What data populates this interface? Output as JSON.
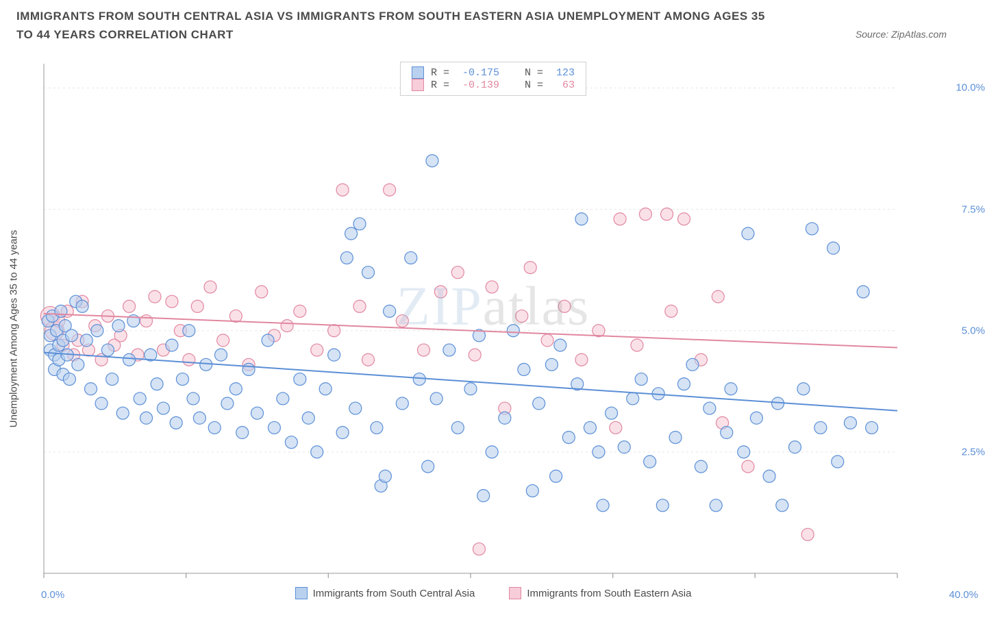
{
  "title": "IMMIGRANTS FROM SOUTH CENTRAL ASIA VS IMMIGRANTS FROM SOUTH EASTERN ASIA UNEMPLOYMENT AMONG AGES 35 TO 44 YEARS CORRELATION CHART",
  "source_label": "Source:",
  "source_value": "ZipAtlas.com",
  "ylabel": "Unemployment Among Ages 35 to 44 years",
  "watermark_a": "ZIP",
  "watermark_b": "atlas",
  "chart": {
    "type": "scatter",
    "xlim": [
      0,
      40
    ],
    "ylim": [
      0,
      10.5
    ],
    "xtick_positions": [
      0,
      6.67,
      13.33,
      20,
      26.67,
      33.33,
      40
    ],
    "xtick_labels_visible": {
      "left": "0.0%",
      "right": "40.0%"
    },
    "ytick_positions": [
      2.5,
      5.0,
      7.5,
      10.0
    ],
    "ytick_labels": [
      "2.5%",
      "5.0%",
      "7.5%",
      "10.0%"
    ],
    "grid_color": "#e5e5e5",
    "grid_dash": "3,4",
    "background_color": "#ffffff",
    "axis_color": "#999999",
    "tick_color": "#888888",
    "yaxis_label_color": "#5b8fd6",
    "xaxis_label_color": "#5b8fd6",
    "marker_radius": 9,
    "marker_radius_large": 14,
    "marker_stroke_width": 1.2,
    "marker_fill_opacity": 0.35,
    "line_width": 2
  },
  "series": [
    {
      "name": "Immigrants from South Central Asia",
      "color": "#5b8fd6",
      "fill": "#b9d1ef",
      "stroke": "#5b8fd6",
      "R": "-0.175",
      "N": "123",
      "trend": {
        "x1": 0,
        "y1": 4.55,
        "x2": 40,
        "y2": 3.35
      },
      "points": [
        [
          0.2,
          5.2
        ],
        [
          0.3,
          4.9
        ],
        [
          0.3,
          4.6
        ],
        [
          0.4,
          5.3
        ],
        [
          0.5,
          4.5
        ],
        [
          0.5,
          4.2
        ],
        [
          0.6,
          5.0
        ],
        [
          0.7,
          4.7
        ],
        [
          0.7,
          4.4
        ],
        [
          0.8,
          5.4
        ],
        [
          0.9,
          4.8
        ],
        [
          0.9,
          4.1
        ],
        [
          1.0,
          5.1
        ],
        [
          1.1,
          4.5
        ],
        [
          1.2,
          4.0
        ],
        [
          1.3,
          4.9
        ],
        [
          1.5,
          5.6
        ],
        [
          1.6,
          4.3
        ],
        [
          1.8,
          5.5
        ],
        [
          2.0,
          4.8
        ],
        [
          2.2,
          3.8
        ],
        [
          2.5,
          5.0
        ],
        [
          2.7,
          3.5
        ],
        [
          3.0,
          4.6
        ],
        [
          3.2,
          4.0
        ],
        [
          3.5,
          5.1
        ],
        [
          3.7,
          3.3
        ],
        [
          4.0,
          4.4
        ],
        [
          4.2,
          5.2
        ],
        [
          4.5,
          3.6
        ],
        [
          4.8,
          3.2
        ],
        [
          5.0,
          4.5
        ],
        [
          5.3,
          3.9
        ],
        [
          5.6,
          3.4
        ],
        [
          6.0,
          4.7
        ],
        [
          6.2,
          3.1
        ],
        [
          6.5,
          4.0
        ],
        [
          6.8,
          5.0
        ],
        [
          7.0,
          3.6
        ],
        [
          7.3,
          3.2
        ],
        [
          7.6,
          4.3
        ],
        [
          8.0,
          3.0
        ],
        [
          8.3,
          4.5
        ],
        [
          8.6,
          3.5
        ],
        [
          9.0,
          3.8
        ],
        [
          9.3,
          2.9
        ],
        [
          9.6,
          4.2
        ],
        [
          10.0,
          3.3
        ],
        [
          10.5,
          4.8
        ],
        [
          10.8,
          3.0
        ],
        [
          11.2,
          3.6
        ],
        [
          11.6,
          2.7
        ],
        [
          12.0,
          4.0
        ],
        [
          12.4,
          3.2
        ],
        [
          12.8,
          2.5
        ],
        [
          13.2,
          3.8
        ],
        [
          13.6,
          4.5
        ],
        [
          14.0,
          2.9
        ],
        [
          14.2,
          6.5
        ],
        [
          14.4,
          7.0
        ],
        [
          14.6,
          3.4
        ],
        [
          14.8,
          7.2
        ],
        [
          15.2,
          6.2
        ],
        [
          15.6,
          3.0
        ],
        [
          15.8,
          1.8
        ],
        [
          16.0,
          2.0
        ],
        [
          16.2,
          5.4
        ],
        [
          16.8,
          3.5
        ],
        [
          17.2,
          6.5
        ],
        [
          17.6,
          4.0
        ],
        [
          18.0,
          2.2
        ],
        [
          18.2,
          8.5
        ],
        [
          18.4,
          3.6
        ],
        [
          19.0,
          4.6
        ],
        [
          19.4,
          3.0
        ],
        [
          20.0,
          3.8
        ],
        [
          20.4,
          4.9
        ],
        [
          20.6,
          1.6
        ],
        [
          21.0,
          2.5
        ],
        [
          21.6,
          3.2
        ],
        [
          22.0,
          5.0
        ],
        [
          22.5,
          4.2
        ],
        [
          22.9,
          1.7
        ],
        [
          23.2,
          3.5
        ],
        [
          23.8,
          4.3
        ],
        [
          24.0,
          2.0
        ],
        [
          24.2,
          4.7
        ],
        [
          24.6,
          2.8
        ],
        [
          25.0,
          3.9
        ],
        [
          25.2,
          7.3
        ],
        [
          25.6,
          3.0
        ],
        [
          26.0,
          2.5
        ],
        [
          26.2,
          1.4
        ],
        [
          26.6,
          3.3
        ],
        [
          27.2,
          2.6
        ],
        [
          27.6,
          3.6
        ],
        [
          28.0,
          4.0
        ],
        [
          28.4,
          2.3
        ],
        [
          28.8,
          3.7
        ],
        [
          29.0,
          1.4
        ],
        [
          29.6,
          2.8
        ],
        [
          30.0,
          3.9
        ],
        [
          30.4,
          4.3
        ],
        [
          30.8,
          2.2
        ],
        [
          31.2,
          3.4
        ],
        [
          31.5,
          1.4
        ],
        [
          32.0,
          2.9
        ],
        [
          32.2,
          3.8
        ],
        [
          32.8,
          2.5
        ],
        [
          33.0,
          7.0
        ],
        [
          33.4,
          3.2
        ],
        [
          34.0,
          2.0
        ],
        [
          34.4,
          3.5
        ],
        [
          34.6,
          1.4
        ],
        [
          35.2,
          2.6
        ],
        [
          35.6,
          3.8
        ],
        [
          36.0,
          7.1
        ],
        [
          36.4,
          3.0
        ],
        [
          37.0,
          6.7
        ],
        [
          37.2,
          2.3
        ],
        [
          37.8,
          3.1
        ],
        [
          38.4,
          5.8
        ],
        [
          38.8,
          3.0
        ]
      ]
    },
    {
      "name": "Immigrants from South Eastern Asia",
      "color": "#e89ab0",
      "fill": "#f6cdd8",
      "stroke": "#e187a0",
      "R": "-0.139",
      "N": " 63",
      "trend": {
        "x1": 0,
        "y1": 5.35,
        "x2": 40,
        "y2": 4.65
      },
      "points": [
        [
          0.3,
          5.3
        ],
        [
          0.5,
          5.0
        ],
        [
          0.7,
          5.2
        ],
        [
          0.9,
          4.7
        ],
        [
          1.1,
          5.4
        ],
        [
          1.4,
          4.5
        ],
        [
          1.6,
          4.8
        ],
        [
          1.8,
          5.6
        ],
        [
          2.1,
          4.6
        ],
        [
          2.4,
          5.1
        ],
        [
          2.7,
          4.4
        ],
        [
          3.0,
          5.3
        ],
        [
          3.3,
          4.7
        ],
        [
          3.6,
          4.9
        ],
        [
          4.0,
          5.5
        ],
        [
          4.4,
          4.5
        ],
        [
          4.8,
          5.2
        ],
        [
          5.2,
          5.7
        ],
        [
          5.6,
          4.6
        ],
        [
          6.0,
          5.6
        ],
        [
          6.4,
          5.0
        ],
        [
          6.8,
          4.4
        ],
        [
          7.2,
          5.5
        ],
        [
          7.8,
          5.9
        ],
        [
          8.4,
          4.8
        ],
        [
          9.0,
          5.3
        ],
        [
          9.6,
          4.3
        ],
        [
          10.2,
          5.8
        ],
        [
          10.8,
          4.9
        ],
        [
          11.4,
          5.1
        ],
        [
          12.0,
          5.4
        ],
        [
          12.8,
          4.6
        ],
        [
          13.6,
          5.0
        ],
        [
          14.0,
          7.9
        ],
        [
          14.8,
          5.5
        ],
        [
          15.2,
          4.4
        ],
        [
          16.2,
          7.9
        ],
        [
          16.8,
          5.2
        ],
        [
          17.8,
          4.6
        ],
        [
          18.6,
          5.8
        ],
        [
          19.4,
          6.2
        ],
        [
          20.2,
          4.5
        ],
        [
          21.0,
          5.9
        ],
        [
          21.6,
          3.4
        ],
        [
          22.4,
          5.3
        ],
        [
          22.8,
          6.3
        ],
        [
          23.6,
          4.8
        ],
        [
          24.4,
          5.5
        ],
        [
          25.2,
          4.4
        ],
        [
          26.0,
          5.0
        ],
        [
          26.8,
          3.0
        ],
        [
          27.0,
          7.3
        ],
        [
          27.8,
          4.7
        ],
        [
          28.2,
          7.4
        ],
        [
          29.2,
          7.4
        ],
        [
          29.4,
          5.4
        ],
        [
          30.0,
          7.3
        ],
        [
          30.8,
          4.4
        ],
        [
          31.6,
          5.7
        ],
        [
          31.8,
          3.1
        ],
        [
          33.0,
          2.2
        ],
        [
          35.8,
          0.8
        ],
        [
          20.4,
          0.5
        ]
      ]
    }
  ],
  "legend_top": {
    "R_label": "R =",
    "N_label": "N ="
  },
  "legend_bottom": [
    {
      "label": "Immigrants from South Central Asia",
      "series": 0
    },
    {
      "label": "Immigrants from South Eastern Asia",
      "series": 1
    }
  ]
}
